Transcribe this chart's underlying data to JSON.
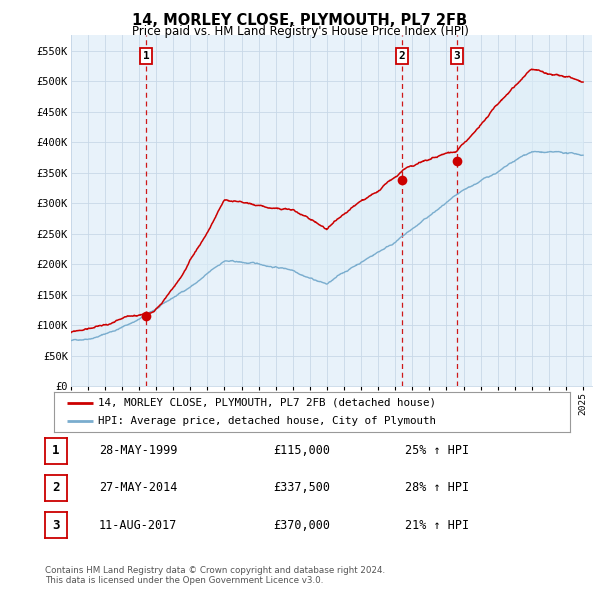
{
  "title": "14, MORLEY CLOSE, PLYMOUTH, PL7 2FB",
  "subtitle": "Price paid vs. HM Land Registry's House Price Index (HPI)",
  "ylabel_ticks": [
    "£0",
    "£50K",
    "£100K",
    "£150K",
    "£200K",
    "£250K",
    "£300K",
    "£350K",
    "£400K",
    "£450K",
    "£500K",
    "£550K"
  ],
  "ytick_values": [
    0,
    50000,
    100000,
    150000,
    200000,
    250000,
    300000,
    350000,
    400000,
    450000,
    500000,
    550000
  ],
  "ylim": [
    0,
    575000
  ],
  "xlim_start": 1995.0,
  "xlim_end": 2025.5,
  "transactions": [
    {
      "label": "1",
      "date": 1999.41,
      "price": 115000
    },
    {
      "label": "2",
      "date": 2014.41,
      "price": 337500
    },
    {
      "label": "3",
      "date": 2017.61,
      "price": 370000
    }
  ],
  "transaction_color": "#cc0000",
  "hpi_color": "#7aadce",
  "fill_color": "#ddeef8",
  "legend_items": [
    "14, MORLEY CLOSE, PLYMOUTH, PL7 2FB (detached house)",
    "HPI: Average price, detached house, City of Plymouth"
  ],
  "table_rows": [
    {
      "num": "1",
      "date": "28-MAY-1999",
      "price": "£115,000",
      "hpi": "25% ↑ HPI"
    },
    {
      "num": "2",
      "date": "27-MAY-2014",
      "price": "£337,500",
      "hpi": "28% ↑ HPI"
    },
    {
      "num": "3",
      "date": "11-AUG-2017",
      "price": "£370,000",
      "hpi": "21% ↑ HPI"
    }
  ],
  "footnote": "Contains HM Land Registry data © Crown copyright and database right 2024.\nThis data is licensed under the Open Government Licence v3.0.",
  "background_color": "#ffffff",
  "plot_bg_color": "#e8f2fa",
  "grid_color": "#c8d8e8",
  "vline_color": "#cc0000"
}
